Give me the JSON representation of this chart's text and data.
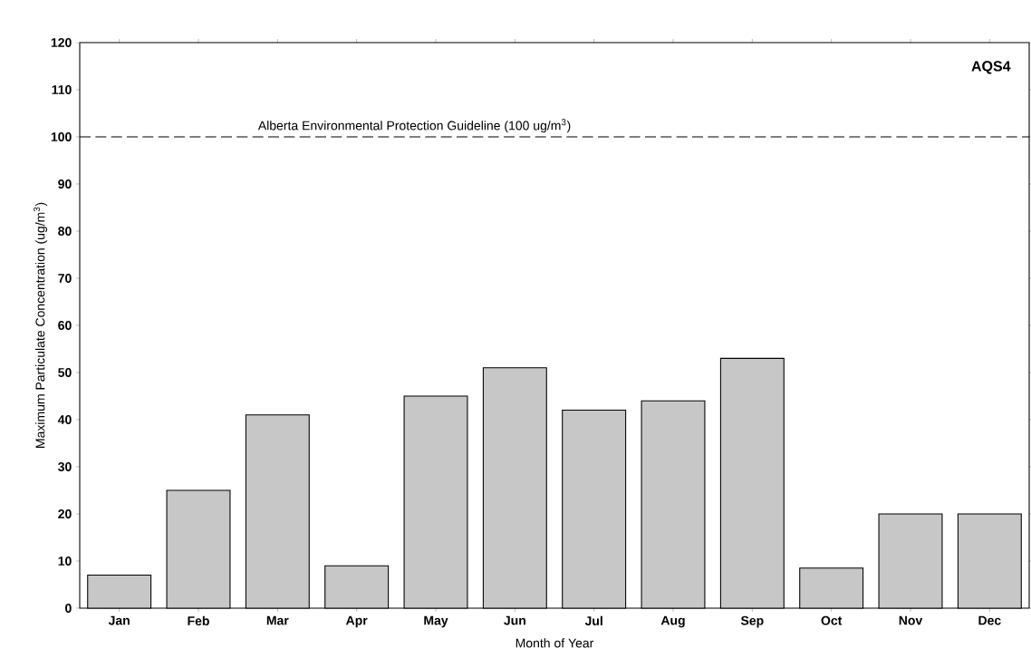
{
  "chart_data": {
    "type": "bar",
    "xlabel": "Month of Year",
    "ylabel": "Maximum Particulate Concentration (ug/m$^{3}$)",
    "categories": [
      "Jan",
      "Feb",
      "Mar",
      "Apr",
      "May",
      "Jun",
      "Jul",
      "Aug",
      "Sep",
      "Oct",
      "Nov",
      "Dec"
    ],
    "values": [
      7,
      25,
      41,
      9,
      45,
      51,
      42,
      44,
      53,
      8.5,
      20,
      20
    ],
    "color": "#000000",
    "ylim": [
      0,
      120
    ],
    "yticks": [
      0,
      10,
      20,
      30,
      40,
      50,
      60,
      70,
      80,
      90,
      100,
      110,
      120
    ],
    "ref_lines": [
      {
        "axis": "y",
        "value": 100,
        "label": "Alberta Environmental Protection Guideline (100 ug/m$^{3}$)",
        "line_style": "dashed"
      }
    ],
    "annotations": [
      "AQS4"
    ],
    "grid": false
  }
}
